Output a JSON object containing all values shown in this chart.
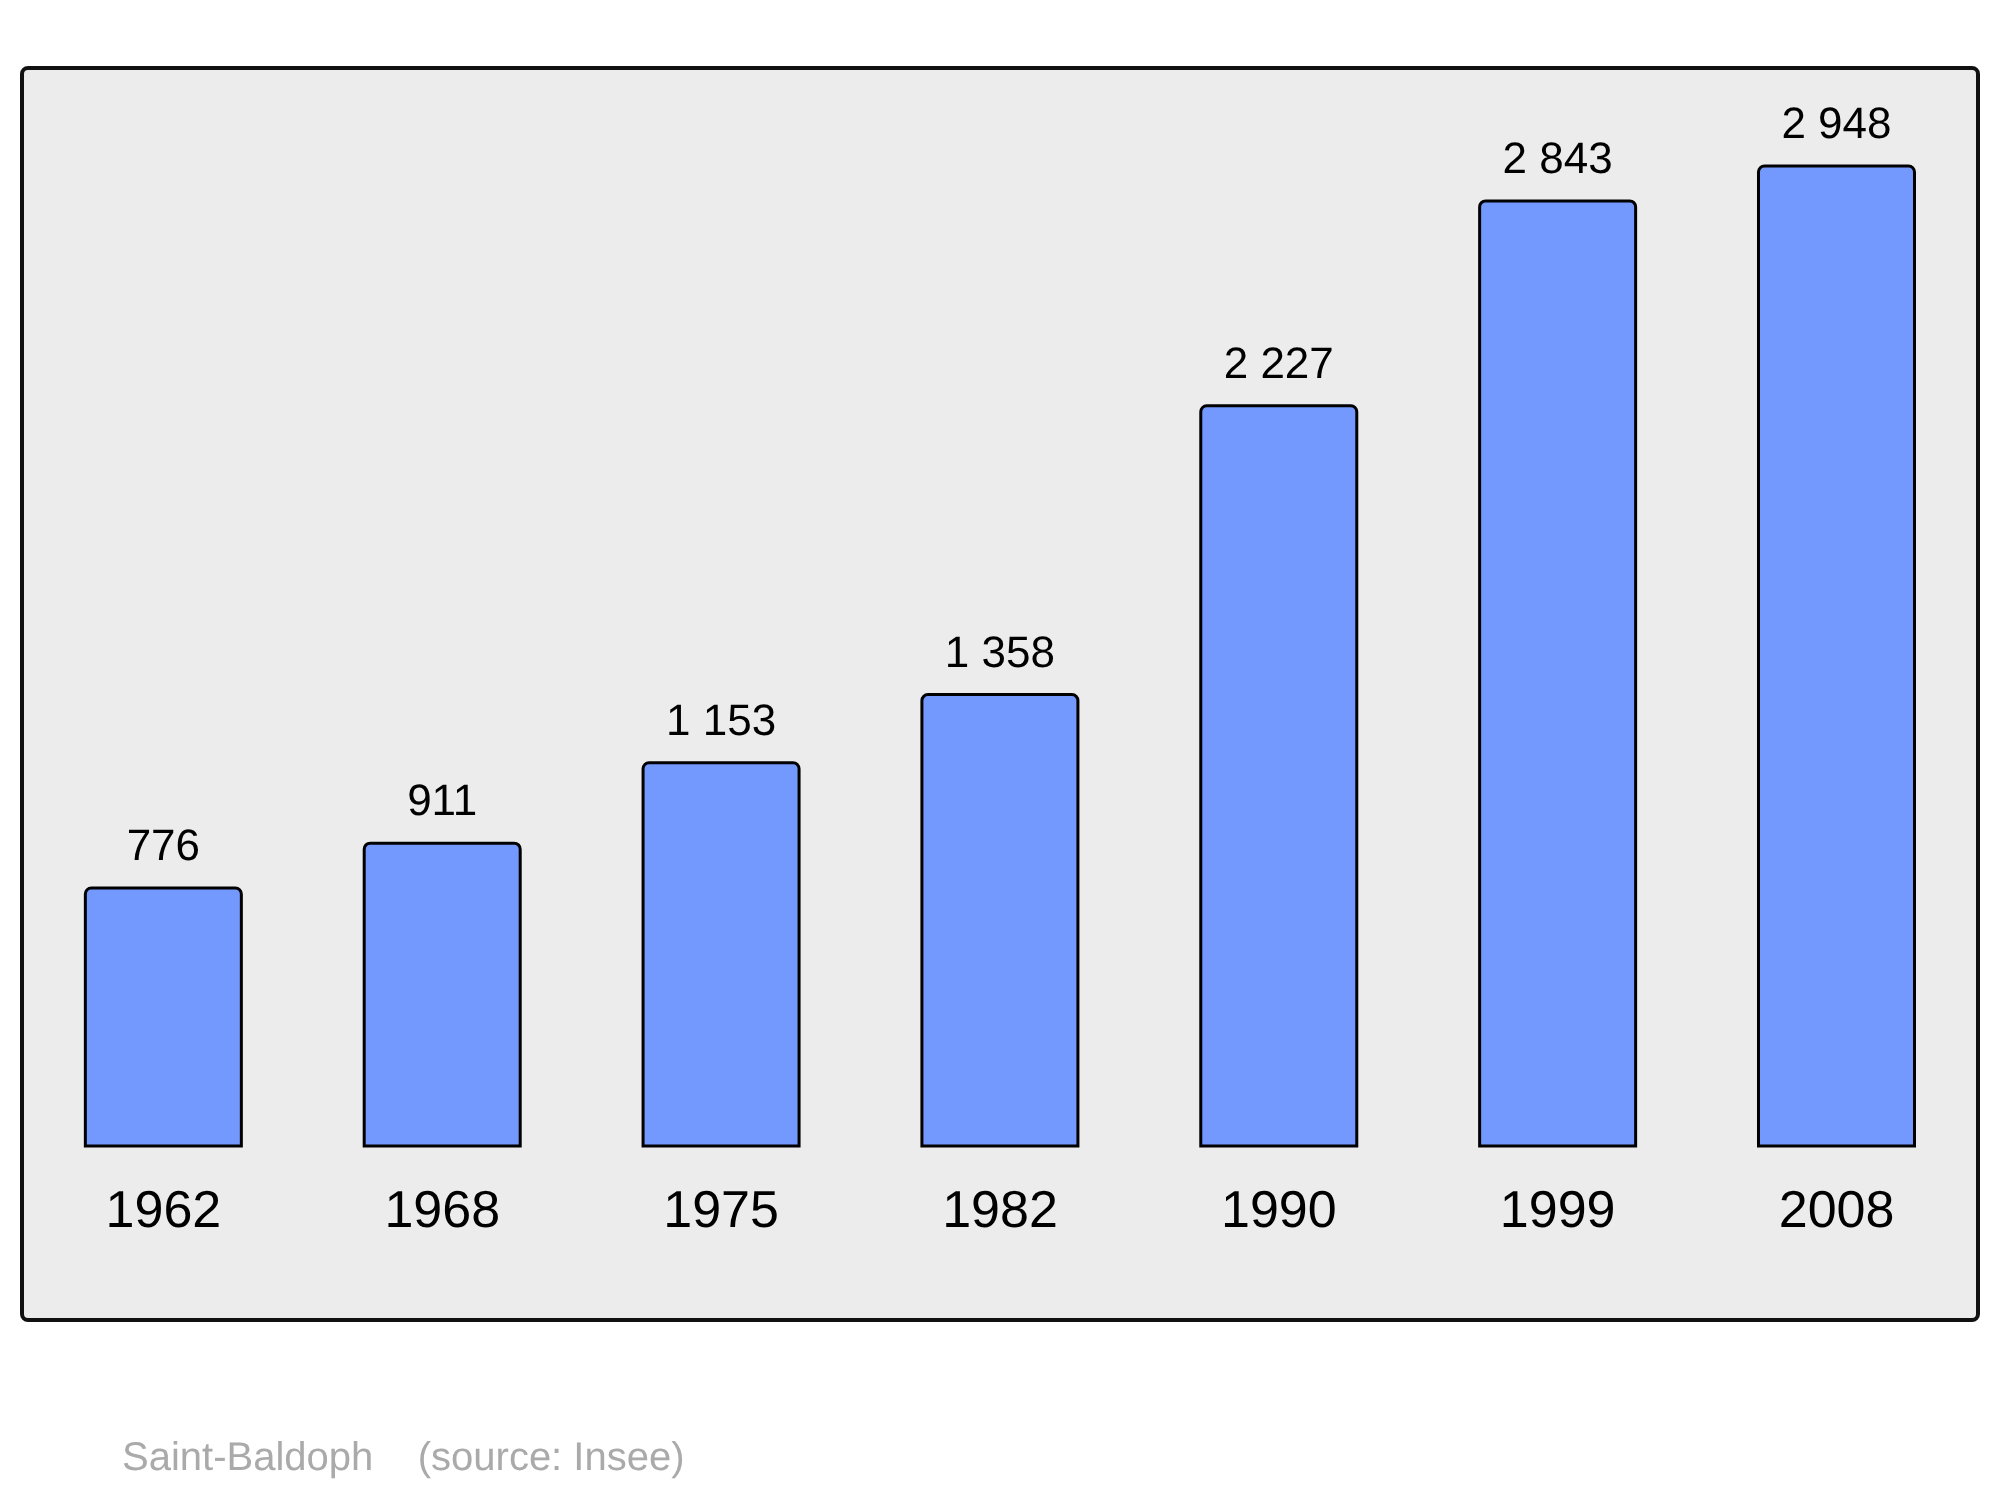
{
  "chart_data": {
    "type": "bar",
    "categories": [
      "1962",
      "1968",
      "1975",
      "1982",
      "1990",
      "1999",
      "2008"
    ],
    "values": [
      776,
      911,
      1153,
      1358,
      2227,
      2843,
      2948
    ],
    "value_labels": [
      "776",
      "911",
      "1 153",
      "1 358",
      "2 227",
      "2 843",
      "2 948"
    ],
    "color": "#7399ff",
    "grid": false,
    "legend": false,
    "annotations": [
      "Saint-Baldoph    (source: Insee)"
    ]
  }
}
